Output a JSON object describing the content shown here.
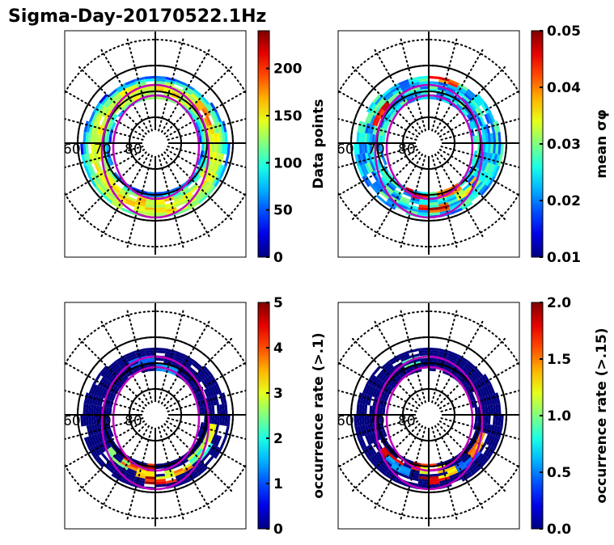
{
  "title": "Sigma-Day-20170522.1Hz",
  "chart_data": [
    {
      "type": "heatmap",
      "projection": "polar",
      "panel": "top-left",
      "colormap": "jet",
      "colorbar_label": "Data points",
      "clim": [
        0,
        240
      ],
      "colorbar_ticks": [
        "0",
        "50",
        "100",
        "150",
        "200"
      ],
      "colorbar_tick_values": [
        0,
        50,
        100,
        150,
        200
      ],
      "latitude_labels": [
        "60",
        "70",
        "80"
      ],
      "ring_profile": [
        {
          "mlat": 63,
          "level": 20
        },
        {
          "mlat": 65,
          "level": 60
        },
        {
          "mlat": 67,
          "level": 110
        },
        {
          "mlat": 69,
          "level": 70
        },
        {
          "mlat": 71,
          "level": 30
        }
      ],
      "hotspots": [
        {
          "mlt": 11.5,
          "mlat": 67,
          "value": 170
        },
        {
          "mlt": 14,
          "mlat": 67,
          "value": 160
        },
        {
          "mlt": 0,
          "mlat": 67,
          "value": 180
        },
        {
          "mlt": 8,
          "mlat": 67,
          "value": 190
        }
      ]
    },
    {
      "type": "heatmap",
      "projection": "polar",
      "panel": "top-right",
      "colormap": "jet",
      "colorbar_label": "mean σφ",
      "clim": [
        0.01,
        0.05
      ],
      "colorbar_ticks": [
        "0.01",
        "0.02",
        "0.03",
        "0.04",
        "0.05"
      ],
      "colorbar_tick_values": [
        0.01,
        0.02,
        0.03,
        0.04,
        0.05
      ],
      "latitude_labels": [
        "60",
        "70",
        "80"
      ],
      "base_level": 0.024,
      "hotspots": [
        {
          "mlt": 0.5,
          "mlat": 64,
          "value": 0.05
        },
        {
          "mlt": 23,
          "mlat": 69,
          "value": 0.048
        },
        {
          "mlt": 1.5,
          "mlat": 69,
          "value": 0.045
        },
        {
          "mlt": 11,
          "mlat": 64,
          "value": 0.047
        },
        {
          "mlt": 16,
          "mlat": 68,
          "value": 0.048
        },
        {
          "mlt": 3,
          "mlat": 66,
          "value": 0.038
        }
      ]
    },
    {
      "type": "heatmap",
      "projection": "polar",
      "panel": "bottom-left",
      "colormap": "jet",
      "colorbar_label": "occurrence rate (>.1)",
      "clim": [
        0,
        5
      ],
      "colorbar_ticks": [
        "0",
        "1",
        "2",
        "3",
        "4",
        "5"
      ],
      "colorbar_tick_values": [
        0,
        1,
        2,
        3,
        4,
        5
      ],
      "latitude_labels": [
        "60",
        "70",
        "80"
      ],
      "base_level": 0,
      "hotspots": [
        {
          "mlt": 0.5,
          "mlat": 64,
          "value": 5
        },
        {
          "mlt": 23.5,
          "mlat": 69,
          "value": 5
        },
        {
          "mlt": 1.5,
          "mlat": 66,
          "value": 4.2
        },
        {
          "mlt": 2.5,
          "mlat": 67,
          "value": 3.0
        },
        {
          "mlt": 3.5,
          "mlat": 66,
          "value": 2.2
        },
        {
          "mlt": 21.5,
          "mlat": 67,
          "value": 2.8
        },
        {
          "mlt": 22.5,
          "mlat": 68,
          "value": 4.5
        },
        {
          "mlt": 0,
          "mlat": 66,
          "value": 3.5
        },
        {
          "mlt": 13,
          "mlat": 68,
          "value": 1.2
        },
        {
          "mlt": 11,
          "mlat": 71,
          "value": 1.5
        },
        {
          "mlt": 4.5,
          "mlat": 67,
          "value": 3.2
        }
      ]
    },
    {
      "type": "heatmap",
      "projection": "polar",
      "panel": "bottom-right",
      "colormap": "jet",
      "colorbar_label": "occurrence rate (>.15)",
      "clim": [
        0,
        2
      ],
      "colorbar_ticks": [
        "0.0",
        "0.5",
        "1.0",
        "1.5",
        "2.0"
      ],
      "colorbar_tick_values": [
        0,
        0.5,
        1.0,
        1.5,
        2.0
      ],
      "latitude_labels": [
        "60",
        "70",
        "80"
      ],
      "base_level": 0,
      "hotspots": [
        {
          "mlt": 0.5,
          "mlat": 64,
          "value": 2.0
        },
        {
          "mlt": 23.5,
          "mlat": 69,
          "value": 2.0
        },
        {
          "mlt": 1.5,
          "mlat": 66,
          "value": 1.5
        },
        {
          "mlt": 21.5,
          "mlat": 67,
          "value": 2.0
        },
        {
          "mlt": 22,
          "mlat": 66,
          "value": 0.6
        },
        {
          "mlt": 2.5,
          "mlat": 66,
          "value": 0.5
        },
        {
          "mlt": 4,
          "mlat": 67,
          "value": 1.6
        },
        {
          "mlt": 13,
          "mlat": 68,
          "value": 1.0
        },
        {
          "mlt": 0.5,
          "mlat": 68,
          "value": 1.3
        }
      ]
    }
  ]
}
